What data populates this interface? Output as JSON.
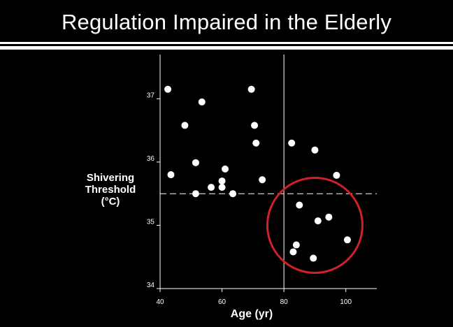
{
  "slide": {
    "title": "Regulation Impaired in the Elderly"
  },
  "chart_data": {
    "type": "scatter",
    "title": "Regulation Impaired in the Elderly",
    "xlabel": "Age (yr)",
    "ylabel_lines": [
      "Shivering",
      "Threshold",
      "(°C)"
    ],
    "xlim": [
      40,
      110
    ],
    "ylim": [
      34,
      37.7
    ],
    "xticks": [
      40,
      60,
      80,
      100
    ],
    "yticks": [
      34,
      35,
      36,
      37
    ],
    "reference_lines": {
      "x": 80,
      "y": 35.5
    },
    "highlight_circle": {
      "cx": 90,
      "cy": 35.0
    },
    "colors": {
      "background": "#000000",
      "points": "#ffffff",
      "circle": "#d0202a"
    },
    "points": [
      {
        "x": 42.5,
        "y": 37.15
      },
      {
        "x": 43.5,
        "y": 35.8
      },
      {
        "x": 48,
        "y": 36.58
      },
      {
        "x": 51.5,
        "y": 35.99
      },
      {
        "x": 51.5,
        "y": 35.5
      },
      {
        "x": 53.5,
        "y": 36.95
      },
      {
        "x": 56.5,
        "y": 35.6
      },
      {
        "x": 60,
        "y": 35.7
      },
      {
        "x": 60,
        "y": 35.6
      },
      {
        "x": 61,
        "y": 35.89
      },
      {
        "x": 63.5,
        "y": 35.5
      },
      {
        "x": 69.5,
        "y": 37.15
      },
      {
        "x": 70.5,
        "y": 36.58
      },
      {
        "x": 71,
        "y": 36.3
      },
      {
        "x": 73,
        "y": 35.72
      },
      {
        "x": 82.5,
        "y": 36.3
      },
      {
        "x": 84,
        "y": 34.69
      },
      {
        "x": 85,
        "y": 35.32
      },
      {
        "x": 83,
        "y": 34.58
      },
      {
        "x": 90,
        "y": 36.19
      },
      {
        "x": 89.5,
        "y": 34.48
      },
      {
        "x": 91,
        "y": 35.07
      },
      {
        "x": 94.5,
        "y": 35.13
      },
      {
        "x": 97,
        "y": 35.79
      },
      {
        "x": 100.5,
        "y": 34.77
      }
    ]
  }
}
